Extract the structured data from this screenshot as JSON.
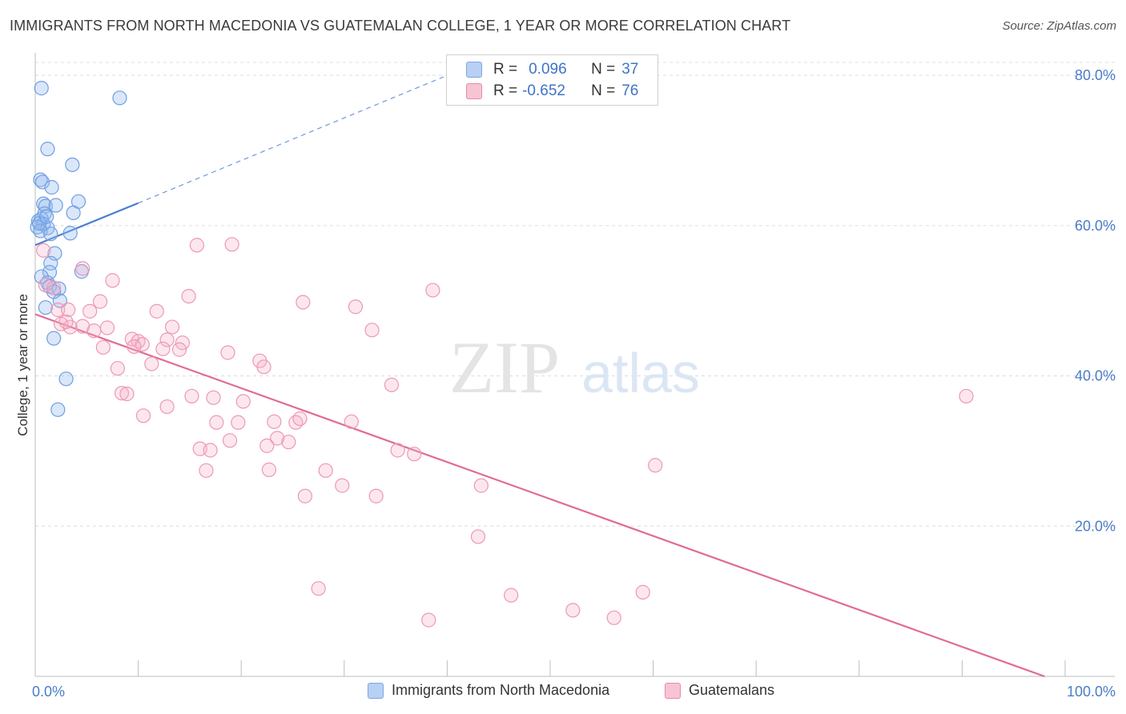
{
  "title": "IMMIGRANTS FROM NORTH MACEDONIA VS GUATEMALAN COLLEGE, 1 YEAR OR MORE CORRELATION CHART",
  "source": "Source: ZipAtlas.com",
  "watermark": {
    "zip": "ZIP",
    "atlas": "atlas"
  },
  "legend": {
    "r_label": "R =",
    "n_label": "N =",
    "rows": [
      {
        "name": "Immigrants from North Macedonia",
        "r": "0.096",
        "n": "37",
        "color": "#7aa7e8",
        "fill": "#b8d0f4"
      },
      {
        "name": "Guatemalans",
        "r": "-0.652",
        "n": "76",
        "color": "#e88aa8",
        "fill": "#f7c4d4"
      }
    ]
  },
  "chart_data": {
    "type": "scatter",
    "title": "IMMIGRANTS FROM NORTH MACEDONIA VS GUATEMALAN COLLEGE, 1 YEAR OR MORE CORRELATION CHART",
    "xlabel": "",
    "ylabel": "College, 1 year or more",
    "xlim": [
      0,
      100
    ],
    "ylim": [
      0,
      83
    ],
    "x_tick_labels": [
      {
        "value": 0,
        "label": "0.0%"
      },
      {
        "value": 100,
        "label": "100.0%"
      }
    ],
    "y_tick_labels": [
      {
        "value": 20,
        "label": "20.0%"
      },
      {
        "value": 40,
        "label": "40.0%"
      },
      {
        "value": 60,
        "label": "60.0%"
      },
      {
        "value": 80,
        "label": "80.0%"
      }
    ],
    "x_minor_ticks": [
      10,
      20,
      30,
      40,
      50,
      60,
      70,
      80,
      90
    ],
    "grid": true,
    "legend_position": "top-center",
    "series": [
      {
        "name": "Immigrants from North Macedonia",
        "color": "#4a7fd4",
        "r": 0.096,
        "n": 37,
        "trend": {
          "x": [
            0,
            10
          ],
          "y": [
            57.4,
            63.0
          ],
          "dashed_to": {
            "x": 40,
            "y": 80.0
          }
        },
        "points": [
          {
            "x": 0.6,
            "y": 78.3
          },
          {
            "x": 8.2,
            "y": 77.0
          },
          {
            "x": 1.2,
            "y": 70.2
          },
          {
            "x": 3.6,
            "y": 68.1
          },
          {
            "x": 0.5,
            "y": 66.1
          },
          {
            "x": 0.7,
            "y": 65.8
          },
          {
            "x": 1.6,
            "y": 65.1
          },
          {
            "x": 4.2,
            "y": 63.2
          },
          {
            "x": 0.8,
            "y": 62.9
          },
          {
            "x": 1.0,
            "y": 62.6
          },
          {
            "x": 2.0,
            "y": 62.7
          },
          {
            "x": 0.9,
            "y": 61.6
          },
          {
            "x": 3.7,
            "y": 61.7
          },
          {
            "x": 0.3,
            "y": 60.6
          },
          {
            "x": 0.6,
            "y": 60.9
          },
          {
            "x": 0.8,
            "y": 60.2
          },
          {
            "x": 0.2,
            "y": 59.8
          },
          {
            "x": 1.2,
            "y": 59.7
          },
          {
            "x": 0.5,
            "y": 59.3
          },
          {
            "x": 1.5,
            "y": 58.9
          },
          {
            "x": 3.4,
            "y": 59.0
          },
          {
            "x": 1.9,
            "y": 56.3
          },
          {
            "x": 1.5,
            "y": 55.0
          },
          {
            "x": 1.4,
            "y": 53.8
          },
          {
            "x": 4.5,
            "y": 53.9
          },
          {
            "x": 0.6,
            "y": 53.2
          },
          {
            "x": 1.2,
            "y": 52.4
          },
          {
            "x": 1.4,
            "y": 51.9
          },
          {
            "x": 2.3,
            "y": 51.6
          },
          {
            "x": 1.8,
            "y": 51.2
          },
          {
            "x": 2.4,
            "y": 50.0
          },
          {
            "x": 1.0,
            "y": 49.1
          },
          {
            "x": 1.8,
            "y": 45.0
          },
          {
            "x": 3.0,
            "y": 39.6
          },
          {
            "x": 2.2,
            "y": 35.5
          },
          {
            "x": 0.4,
            "y": 60.3
          },
          {
            "x": 1.1,
            "y": 61.2
          }
        ]
      },
      {
        "name": "Guatemalans",
        "color": "#e06b97",
        "r": -0.652,
        "n": 76,
        "trend": {
          "x": [
            0,
            98
          ],
          "y": [
            48.2,
            0.0
          ]
        },
        "points": [
          {
            "x": 0.8,
            "y": 56.7
          },
          {
            "x": 15.7,
            "y": 57.4
          },
          {
            "x": 19.1,
            "y": 57.5
          },
          {
            "x": 4.6,
            "y": 54.3
          },
          {
            "x": 7.5,
            "y": 52.7
          },
          {
            "x": 1.0,
            "y": 52.1
          },
          {
            "x": 1.8,
            "y": 51.7
          },
          {
            "x": 38.6,
            "y": 51.4
          },
          {
            "x": 14.9,
            "y": 50.6
          },
          {
            "x": 6.3,
            "y": 49.9
          },
          {
            "x": 26.0,
            "y": 49.8
          },
          {
            "x": 31.1,
            "y": 49.2
          },
          {
            "x": 2.2,
            "y": 48.8
          },
          {
            "x": 3.2,
            "y": 48.8
          },
          {
            "x": 5.3,
            "y": 48.6
          },
          {
            "x": 11.8,
            "y": 48.6
          },
          {
            "x": 2.5,
            "y": 46.9
          },
          {
            "x": 3.4,
            "y": 46.5
          },
          {
            "x": 4.6,
            "y": 46.6
          },
          {
            "x": 7.0,
            "y": 46.4
          },
          {
            "x": 13.3,
            "y": 46.5
          },
          {
            "x": 5.7,
            "y": 46.0
          },
          {
            "x": 32.7,
            "y": 46.1
          },
          {
            "x": 9.4,
            "y": 44.9
          },
          {
            "x": 10.0,
            "y": 44.6
          },
          {
            "x": 12.8,
            "y": 44.8
          },
          {
            "x": 14.3,
            "y": 44.4
          },
          {
            "x": 10.4,
            "y": 44.2
          },
          {
            "x": 6.6,
            "y": 43.8
          },
          {
            "x": 12.4,
            "y": 43.6
          },
          {
            "x": 14.0,
            "y": 43.5
          },
          {
            "x": 18.7,
            "y": 43.1
          },
          {
            "x": 21.8,
            "y": 42.0
          },
          {
            "x": 11.3,
            "y": 41.6
          },
          {
            "x": 22.2,
            "y": 41.2
          },
          {
            "x": 8.0,
            "y": 41.0
          },
          {
            "x": 34.6,
            "y": 38.8
          },
          {
            "x": 8.4,
            "y": 37.7
          },
          {
            "x": 8.9,
            "y": 37.6
          },
          {
            "x": 15.2,
            "y": 37.3
          },
          {
            "x": 17.3,
            "y": 37.1
          },
          {
            "x": 20.2,
            "y": 36.6
          },
          {
            "x": 12.8,
            "y": 35.9
          },
          {
            "x": 10.5,
            "y": 34.7
          },
          {
            "x": 90.4,
            "y": 37.3
          },
          {
            "x": 17.6,
            "y": 33.8
          },
          {
            "x": 19.7,
            "y": 33.8
          },
          {
            "x": 23.2,
            "y": 33.9
          },
          {
            "x": 25.3,
            "y": 33.8
          },
          {
            "x": 25.7,
            "y": 34.3
          },
          {
            "x": 30.7,
            "y": 33.9
          },
          {
            "x": 18.9,
            "y": 31.4
          },
          {
            "x": 23.5,
            "y": 31.7
          },
          {
            "x": 22.5,
            "y": 30.7
          },
          {
            "x": 24.6,
            "y": 31.2
          },
          {
            "x": 16.0,
            "y": 30.3
          },
          {
            "x": 17.0,
            "y": 30.1
          },
          {
            "x": 35.2,
            "y": 30.1
          },
          {
            "x": 36.8,
            "y": 29.6
          },
          {
            "x": 60.2,
            "y": 28.1
          },
          {
            "x": 16.6,
            "y": 27.4
          },
          {
            "x": 22.7,
            "y": 27.5
          },
          {
            "x": 28.2,
            "y": 27.4
          },
          {
            "x": 29.8,
            "y": 25.4
          },
          {
            "x": 43.3,
            "y": 25.4
          },
          {
            "x": 26.2,
            "y": 24.0
          },
          {
            "x": 33.1,
            "y": 24.0
          },
          {
            "x": 43.0,
            "y": 18.6
          },
          {
            "x": 27.5,
            "y": 11.7
          },
          {
            "x": 46.2,
            "y": 10.8
          },
          {
            "x": 59.0,
            "y": 11.2
          },
          {
            "x": 52.2,
            "y": 8.8
          },
          {
            "x": 56.2,
            "y": 7.8
          },
          {
            "x": 38.2,
            "y": 7.5
          },
          {
            "x": 3.0,
            "y": 47.2
          },
          {
            "x": 9.6,
            "y": 43.9
          }
        ]
      }
    ]
  }
}
